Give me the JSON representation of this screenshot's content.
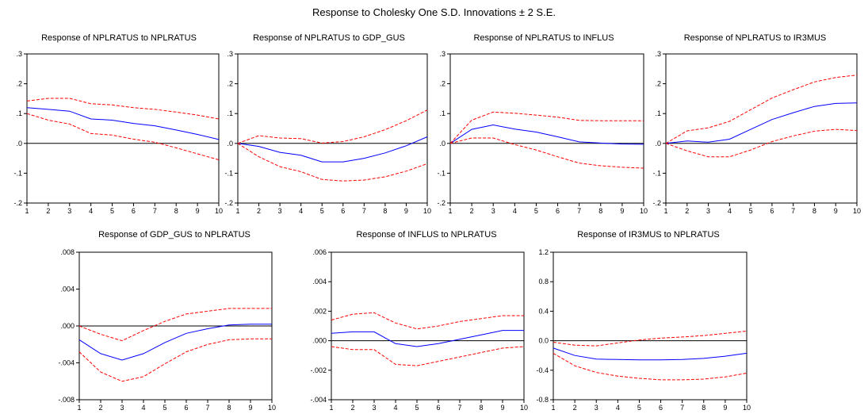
{
  "title": "Response to Cholesky One S.D. Innovations ± 2 S.E.",
  "colors": {
    "response": "#0000ff",
    "bands": "#ff0000",
    "zero_line": "#000000",
    "frame": "#000000"
  },
  "chart_data": [
    {
      "type": "line",
      "title": "Response of NPLRATUS to NPLRATUS",
      "x": [
        1,
        2,
        3,
        4,
        5,
        6,
        7,
        8,
        9,
        10
      ],
      "ylim": [
        -0.2,
        0.3
      ],
      "yticks": [
        ".3",
        ".2",
        ".1",
        ".0",
        "-.1",
        "-.2"
      ],
      "ytick_values": [
        0.3,
        0.2,
        0.1,
        0.0,
        -0.1,
        -0.2
      ],
      "grid": false,
      "series": [
        {
          "values": [
            0.12,
            0.114,
            0.108,
            0.082,
            0.078,
            0.067,
            0.059,
            0.045,
            0.03,
            0.013
          ]
        },
        {
          "values": [
            0.142,
            0.151,
            0.151,
            0.133,
            0.129,
            0.12,
            0.114,
            0.105,
            0.095,
            0.082
          ]
        },
        {
          "values": [
            0.1,
            0.078,
            0.065,
            0.033,
            0.028,
            0.014,
            0.004,
            -0.015,
            -0.035,
            -0.055
          ]
        }
      ]
    },
    {
      "type": "line",
      "title": "Response of NPLRATUS to GDP_GUS",
      "x": [
        1,
        2,
        3,
        4,
        5,
        6,
        7,
        8,
        9,
        10
      ],
      "ylim": [
        -0.2,
        0.3
      ],
      "yticks": [
        ".3",
        ".2",
        ".1",
        ".0",
        "-.1",
        "-.2"
      ],
      "ytick_values": [
        0.3,
        0.2,
        0.1,
        0.0,
        -0.1,
        -0.2
      ],
      "grid": false,
      "series": [
        {
          "values": [
            0.0,
            -0.01,
            -0.03,
            -0.04,
            -0.062,
            -0.062,
            -0.05,
            -0.032,
            -0.008,
            0.022
          ]
        },
        {
          "values": [
            0.0,
            0.026,
            0.018,
            0.016,
            0.001,
            0.006,
            0.022,
            0.046,
            0.076,
            0.112
          ]
        },
        {
          "values": [
            0.0,
            -0.045,
            -0.078,
            -0.095,
            -0.121,
            -0.126,
            -0.123,
            -0.112,
            -0.093,
            -0.068
          ]
        }
      ]
    },
    {
      "type": "line",
      "title": "Response of NPLRATUS to INFLUS",
      "x": [
        1,
        2,
        3,
        4,
        5,
        6,
        7,
        8,
        9,
        10
      ],
      "ylim": [
        -0.2,
        0.3
      ],
      "yticks": [
        ".3",
        ".2",
        ".1",
        ".0",
        "-.1",
        "-.2"
      ],
      "ytick_values": [
        0.3,
        0.2,
        0.1,
        0.0,
        -0.1,
        -0.2
      ],
      "grid": false,
      "series": [
        {
          "values": [
            0.0,
            0.047,
            0.062,
            0.048,
            0.038,
            0.022,
            0.005,
            0.001,
            -0.002,
            -0.003
          ]
        },
        {
          "values": [
            0.0,
            0.078,
            0.105,
            0.101,
            0.095,
            0.088,
            0.077,
            0.076,
            0.076,
            0.076
          ]
        },
        {
          "values": [
            0.0,
            0.018,
            0.018,
            -0.004,
            -0.022,
            -0.045,
            -0.066,
            -0.075,
            -0.08,
            -0.083
          ]
        }
      ]
    },
    {
      "type": "line",
      "title": "Response of NPLRATUS to IR3MUS",
      "x": [
        1,
        2,
        3,
        4,
        5,
        6,
        7,
        8,
        9,
        10
      ],
      "ylim": [
        -0.2,
        0.3
      ],
      "yticks": [
        ".3",
        ".2",
        ".1",
        ".0",
        "-.1",
        "-.2"
      ],
      "ytick_values": [
        0.3,
        0.2,
        0.1,
        0.0,
        -0.1,
        -0.2
      ],
      "grid": false,
      "series": [
        {
          "values": [
            0.0,
            0.008,
            0.004,
            0.014,
            0.047,
            0.08,
            0.103,
            0.124,
            0.134,
            0.136
          ]
        },
        {
          "values": [
            0.0,
            0.042,
            0.052,
            0.074,
            0.113,
            0.152,
            0.18,
            0.206,
            0.221,
            0.229
          ]
        },
        {
          "values": [
            0.0,
            -0.025,
            -0.045,
            -0.045,
            -0.022,
            0.006,
            0.025,
            0.041,
            0.047,
            0.043
          ]
        }
      ]
    },
    {
      "type": "line",
      "title": "Response of GDP_GUS to NPLRATUS",
      "x": [
        1,
        2,
        3,
        4,
        5,
        6,
        7,
        8,
        9,
        10
      ],
      "ylim": [
        -0.008,
        0.008
      ],
      "yticks": [
        ".008",
        ".004",
        ".000",
        "-.004",
        "-.008"
      ],
      "ytick_values": [
        0.008,
        0.004,
        0.0,
        -0.004,
        -0.008
      ],
      "grid": false,
      "series": [
        {
          "values": [
            -0.0015,
            -0.003,
            -0.0037,
            -0.003,
            -0.0018,
            -0.0008,
            -0.0003,
            0.0001,
            0.0002,
            0.0002
          ]
        },
        {
          "values": [
            0.0,
            -0.0009,
            -0.0016,
            -0.0005,
            0.0005,
            0.0013,
            0.0016,
            0.0019,
            0.0019,
            0.0019
          ]
        },
        {
          "values": [
            -0.0028,
            -0.005,
            -0.006,
            -0.0055,
            -0.0041,
            -0.0028,
            -0.002,
            -0.0015,
            -0.0014,
            -0.0014
          ]
        }
      ]
    },
    {
      "type": "line",
      "title": "Response of INFLUS to NPLRATUS",
      "x": [
        1,
        2,
        3,
        4,
        5,
        6,
        7,
        8,
        9,
        10
      ],
      "ylim": [
        -0.004,
        0.006
      ],
      "yticks": [
        ".006",
        ".004",
        ".002",
        ".000",
        "-.002",
        "-.004"
      ],
      "ytick_values": [
        0.006,
        0.004,
        0.002,
        0.0,
        -0.002,
        -0.004
      ],
      "grid": false,
      "series": [
        {
          "values": [
            0.0005,
            0.0006,
            0.0006,
            -0.0002,
            -0.0004,
            -0.0002,
            0.0001,
            0.0004,
            0.0007,
            0.0007
          ]
        },
        {
          "values": [
            0.0014,
            0.0018,
            0.0019,
            0.0012,
            0.0008,
            0.001,
            0.0013,
            0.0015,
            0.0017,
            0.0017
          ]
        },
        {
          "values": [
            -0.0004,
            -0.0006,
            -0.0006,
            -0.0016,
            -0.0017,
            -0.0014,
            -0.0011,
            -0.0008,
            -0.0005,
            -0.0004
          ]
        }
      ]
    },
    {
      "type": "line",
      "title": "Response of IR3MUS to NPLRATUS",
      "x": [
        1,
        2,
        3,
        4,
        5,
        6,
        7,
        8,
        9,
        10
      ],
      "ylim": [
        -0.8,
        1.2
      ],
      "yticks": [
        "1.2",
        "0.8",
        "0.4",
        "0.0",
        "-0.4",
        "-0.8"
      ],
      "ytick_values": [
        1.2,
        0.8,
        0.4,
        0.0,
        -0.4,
        -0.8
      ],
      "grid": false,
      "series": [
        {
          "values": [
            -0.1,
            -0.2,
            -0.25,
            -0.255,
            -0.26,
            -0.26,
            -0.255,
            -0.24,
            -0.21,
            -0.17
          ]
        },
        {
          "values": [
            -0.02,
            -0.06,
            -0.07,
            -0.03,
            0.01,
            0.035,
            0.05,
            0.07,
            0.1,
            0.13
          ]
        },
        {
          "values": [
            -0.17,
            -0.34,
            -0.43,
            -0.48,
            -0.51,
            -0.53,
            -0.53,
            -0.52,
            -0.49,
            -0.44
          ]
        }
      ]
    }
  ]
}
